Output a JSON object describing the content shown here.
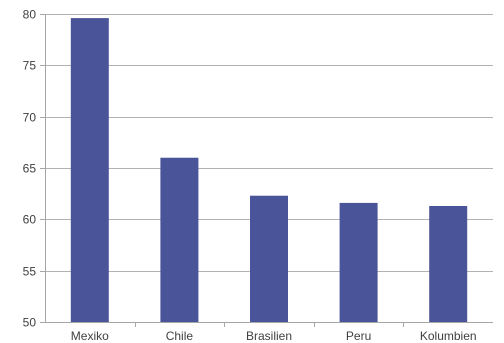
{
  "chart_data": {
    "type": "bar",
    "title": "",
    "xlabel": "",
    "ylabel": "",
    "categories": [
      "Mexiko",
      "Chile",
      "Brasilien",
      "Peru",
      "Kolumbien"
    ],
    "values": [
      79.6,
      66.0,
      62.3,
      61.6,
      61.3
    ],
    "ylim": [
      50,
      80
    ],
    "yticks": [
      "50",
      "55",
      "60",
      "65",
      "70",
      "75",
      "80"
    ],
    "grid": true,
    "legend": "none",
    "colors": {
      "bar": "#4a5499",
      "grid": "#b3b3b3",
      "axis": "#a6a6a6",
      "text": "#404040"
    }
  }
}
